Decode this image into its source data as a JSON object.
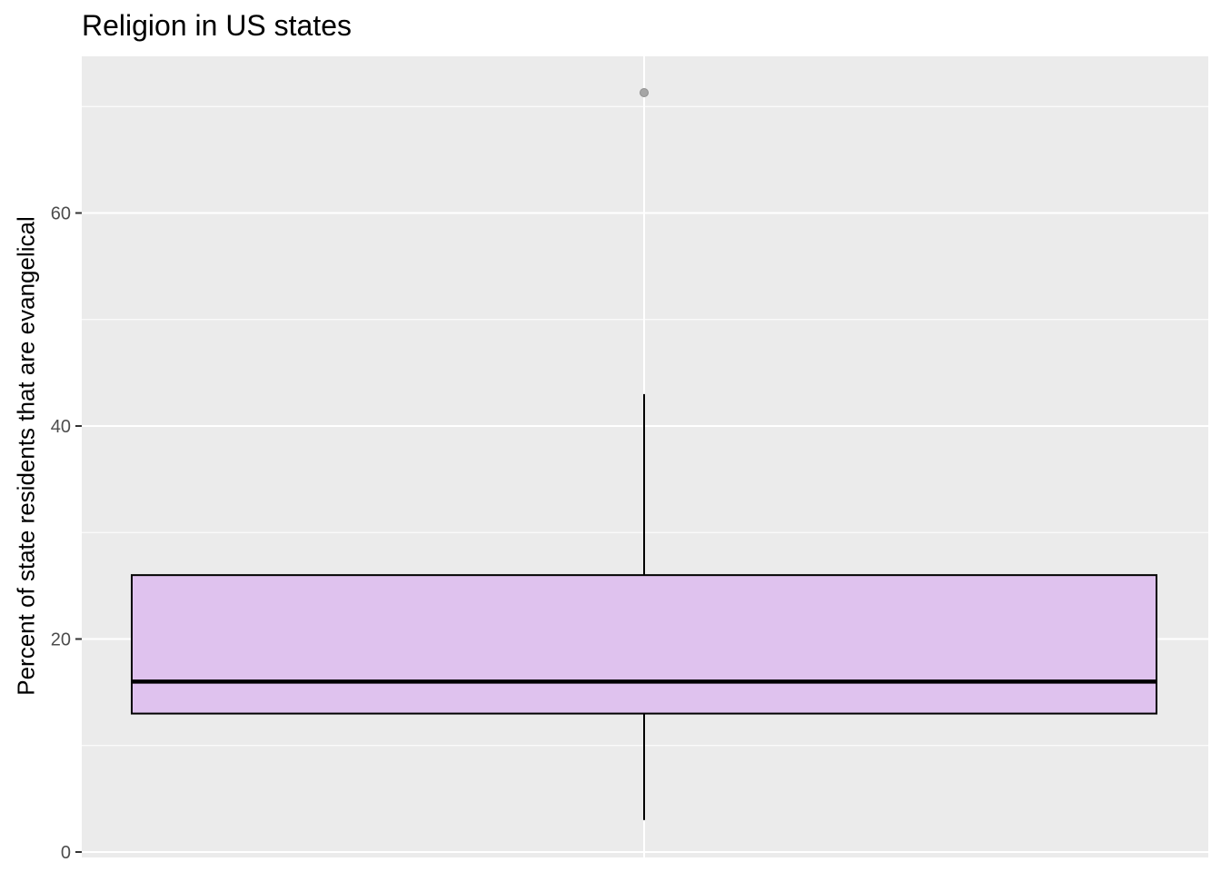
{
  "chart_data": {
    "type": "box",
    "title": "Religion in US states",
    "xlabel": "",
    "ylabel": "Percent of state residents that are evangelical",
    "ylim": [
      0,
      70.9
    ],
    "yticks": [
      0,
      20,
      40,
      60
    ],
    "grid": true,
    "legend": "none",
    "box": {
      "min": 3,
      "q1": 13,
      "median": 16,
      "q3": 26,
      "max": 43,
      "outliers": [
        71.3
      ]
    },
    "colors": {
      "panel_bg": "#ebebeb",
      "grid": "#ffffff",
      "box_fill": "#dfc2ee",
      "box_stroke": "#000000",
      "outlier": "#a6a6a6"
    }
  }
}
